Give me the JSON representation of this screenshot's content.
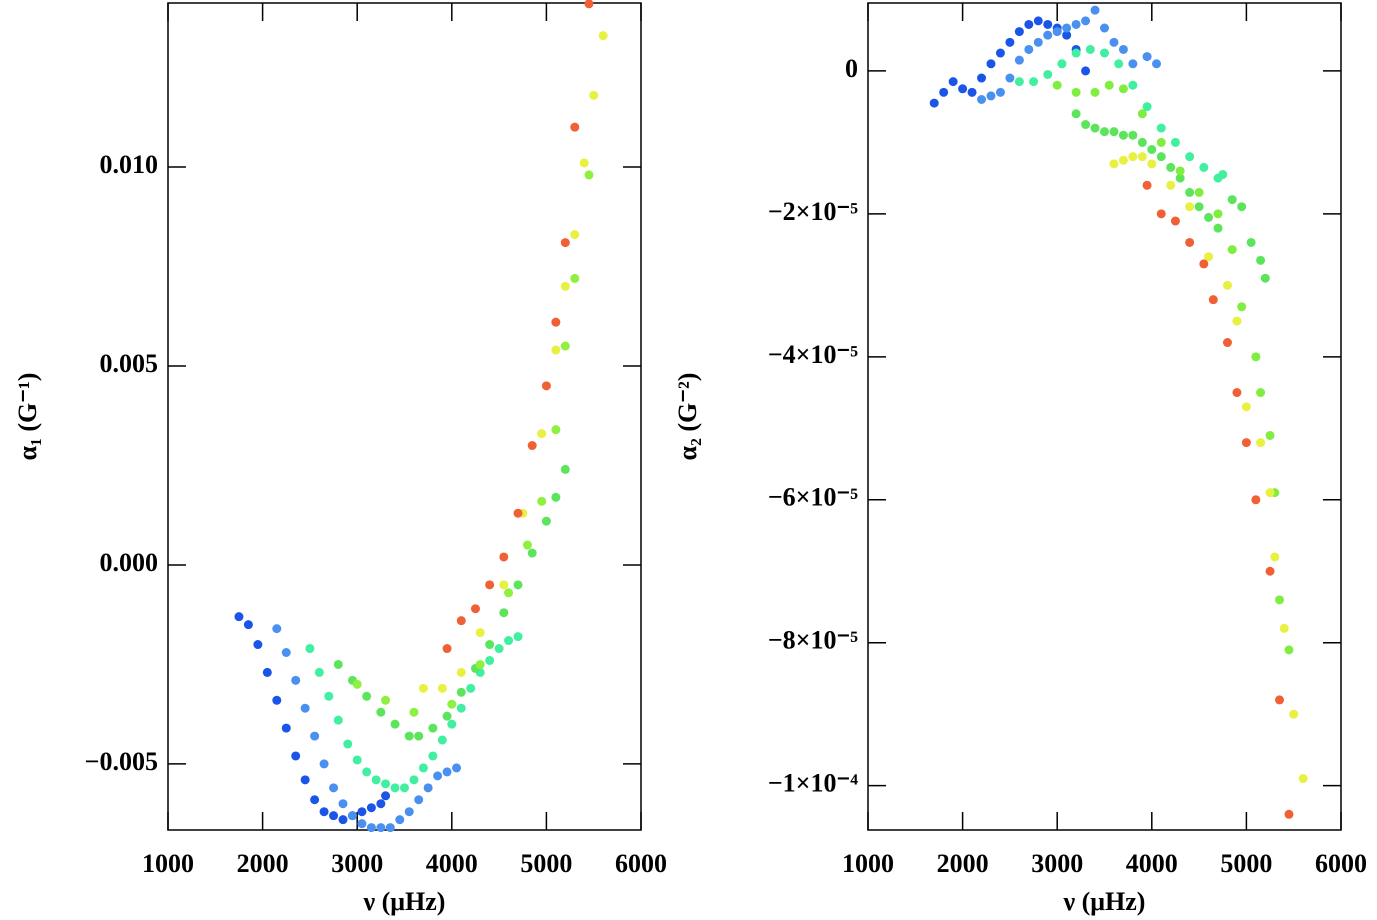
{
  "chart_data": [
    {
      "type": "scatter",
      "xlabel": "ν (μHz)",
      "ylabel": "α₁ (G⁻¹)",
      "xlim": [
        1000,
        6000
      ],
      "xticks": [
        1000,
        2000,
        3000,
        4000,
        5000,
        6000
      ],
      "ylim": [
        -0.00666,
        0.01412
      ],
      "yticks": [
        {
          "value": 0.01,
          "label": "0.010"
        },
        {
          "value": 0.005,
          "label": "0.005"
        },
        {
          "value": 0,
          "label": "0.000"
        },
        {
          "value": -0.005,
          "label": "−0.005"
        }
      ],
      "series": [
        {
          "color": "#1b55e8",
          "x": [
            1750,
            1850,
            1950,
            2050,
            2150,
            2250,
            2350,
            2450,
            2550,
            2650,
            2750,
            2850,
            2950,
            3050,
            3150,
            3250,
            3300
          ],
          "values": [
            -0.0013,
            -0.0015,
            -0.002,
            -0.0027,
            -0.0034,
            -0.0041,
            -0.0048,
            -0.0054,
            -0.0059,
            -0.0062,
            -0.0063,
            -0.0064,
            -0.0063,
            -0.0062,
            -0.0061,
            -0.006,
            -0.0058
          ]
        },
        {
          "color": "#4a90f0",
          "x": [
            2150,
            2250,
            2350,
            2450,
            2550,
            2650,
            2750,
            2850,
            2950,
            3050,
            3150,
            3250,
            3350,
            3450,
            3550,
            3650,
            3750,
            3850,
            3950,
            4050
          ],
          "values": [
            -0.0016,
            -0.0022,
            -0.0029,
            -0.0036,
            -0.0043,
            -0.005,
            -0.0056,
            -0.006,
            -0.0063,
            -0.0065,
            -0.0066,
            -0.0066,
            -0.0066,
            -0.0064,
            -0.0062,
            -0.0059,
            -0.0056,
            -0.0053,
            -0.0052,
            -0.0051
          ]
        },
        {
          "color": "#40f0a0",
          "x": [
            2500,
            2600,
            2700,
            2800,
            2900,
            3000,
            3100,
            3200,
            3300,
            3400,
            3500,
            3600,
            3700,
            3800,
            3900,
            4000,
            4100,
            4200,
            4300,
            4400,
            4500,
            4600,
            4700
          ],
          "values": [
            -0.0021,
            -0.0027,
            -0.0033,
            -0.0039,
            -0.0045,
            -0.0049,
            -0.0052,
            -0.0054,
            -0.0055,
            -0.0056,
            -0.0056,
            -0.0054,
            -0.0051,
            -0.0048,
            -0.0044,
            -0.004,
            -0.0036,
            -0.0031,
            -0.0027,
            -0.0024,
            -0.0021,
            -0.0019,
            -0.0018
          ]
        },
        {
          "color": "#5ce55c",
          "x": [
            2800,
            2950,
            3100,
            3250,
            3400,
            3550,
            3650,
            3800,
            3950,
            4100,
            4250,
            4400,
            4550,
            4700,
            4850,
            5000,
            5100,
            5200
          ],
          "values": [
            -0.0025,
            -0.0029,
            -0.0033,
            -0.0037,
            -0.004,
            -0.0043,
            -0.0043,
            -0.0041,
            -0.0038,
            -0.0032,
            -0.0026,
            -0.002,
            -0.0012,
            -0.0005,
            0.0003,
            0.0011,
            0.0017,
            0.0024
          ]
        },
        {
          "color": "#90f040",
          "x": [
            3000,
            3300,
            3600,
            4000,
            4300,
            4600,
            4800,
            4950,
            5100,
            5200,
            5300,
            5450
          ],
          "values": [
            -0.003,
            -0.0034,
            -0.0037,
            -0.0035,
            -0.0025,
            -0.0007,
            0.0005,
            0.0016,
            0.0034,
            0.0055,
            0.0072,
            0.0098
          ]
        },
        {
          "color": "#e8f040",
          "x": [
            3700,
            3900,
            4100,
            4300,
            4550,
            4750,
            4950,
            5100,
            5200,
            5300,
            5400,
            5500,
            5600
          ],
          "values": [
            -0.0031,
            -0.0031,
            -0.0027,
            -0.0017,
            -0.0005,
            0.0013,
            0.0033,
            0.0054,
            0.007,
            0.0083,
            0.0101,
            0.0118,
            0.0133
          ]
        },
        {
          "color": "#f06035",
          "x": [
            3950,
            4100,
            4250,
            4400,
            4550,
            4700,
            4850,
            5000,
            5100,
            5200,
            5300,
            5450
          ],
          "values": [
            -0.0021,
            -0.0014,
            -0.0011,
            -0.0005,
            0.0002,
            0.0013,
            0.003,
            0.0045,
            0.0061,
            0.0081,
            0.011,
            0.0141
          ]
        }
      ]
    },
    {
      "type": "scatter",
      "xlabel": "ν (μHz)",
      "ylabel": "α₂ (G⁻²)",
      "xlim": [
        1000,
        6000
      ],
      "xticks": [
        1000,
        2000,
        3000,
        4000,
        5000,
        6000
      ],
      "ylim": [
        -0.0001062,
        9.5e-06
      ],
      "yticks": [
        0,
        {
          "value": -2e-05,
          "label": "−2×10⁻⁵"
        },
        {
          "value": -4e-05,
          "label": "−4×10⁻⁵"
        },
        {
          "value": -6e-05,
          "label": "−6×10⁻⁵"
        },
        {
          "value": -8e-05,
          "label": "−8×10⁻⁵"
        },
        {
          "value": -0.0001,
          "label": "−1×10⁻⁴"
        }
      ],
      "series": [
        {
          "color": "#1b55e8",
          "x": [
            1700,
            1800,
            1900,
            2000,
            2100,
            2200,
            2300,
            2400,
            2500,
            2600,
            2700,
            2800,
            2900,
            3000,
            3100,
            3200,
            3300
          ],
          "values": [
            -4.5e-06,
            -3e-06,
            -1.5e-06,
            -2.5e-06,
            -3e-06,
            -1e-06,
            1e-06,
            2.5e-06,
            4e-06,
            5.5e-06,
            6.5e-06,
            7e-06,
            6.5e-06,
            6e-06,
            5e-06,
            3e-06,
            0.0
          ]
        },
        {
          "color": "#4a90f0",
          "x": [
            2200,
            2300,
            2400,
            2500,
            2600,
            2700,
            2800,
            2900,
            3000,
            3100,
            3200,
            3300,
            3400,
            3500,
            3600,
            3700,
            3800,
            3950,
            4050
          ],
          "values": [
            -4e-06,
            -3.5e-06,
            -3e-06,
            -1e-06,
            1.5e-06,
            3e-06,
            4e-06,
            5e-06,
            5.5e-06,
            6e-06,
            6.5e-06,
            7e-06,
            8.5e-06,
            6e-06,
            4e-06,
            3e-06,
            1e-06,
            2e-06,
            1e-06
          ]
        },
        {
          "color": "#40f0a0",
          "x": [
            2600,
            2750,
            2900,
            3050,
            3200,
            3350,
            3500,
            3650,
            3800,
            3950,
            4100,
            4250,
            4400,
            4550,
            4700,
            4750
          ],
          "values": [
            -1.5e-06,
            -1.5e-06,
            -5e-07,
            1e-06,
            2.5e-06,
            3e-06,
            2.5e-06,
            1e-06,
            -2e-06,
            -5e-06,
            -8e-06,
            -1e-05,
            -1.2e-05,
            -1.35e-05,
            -1.5e-05,
            -1.45e-05
          ]
        },
        {
          "color": "#5ce55c",
          "x": [
            3200,
            3300,
            3400,
            3500,
            3600,
            3700,
            3800,
            3900,
            4000,
            4100,
            4200,
            4300,
            4400,
            4500,
            4600,
            4700,
            4850,
            4950,
            5050,
            5150,
            5200
          ],
          "values": [
            -6e-06,
            -7.5e-06,
            -8e-06,
            -8.5e-06,
            -8.5e-06,
            -9e-06,
            -9e-06,
            -1e-05,
            -1.1e-05,
            -1.2e-05,
            -1.35e-05,
            -1.5e-05,
            -1.7e-05,
            -1.9e-05,
            -2.05e-05,
            -2.2e-05,
            -1.8e-05,
            -1.9e-05,
            -2.4e-05,
            -2.65e-05,
            -2.9e-05
          ]
        },
        {
          "color": "#80ee40",
          "x": [
            3000,
            3200,
            3400,
            3550,
            3700,
            3900,
            4100,
            4300,
            4500,
            4700,
            4850,
            4950,
            5100,
            5150,
            5250,
            5300,
            5350,
            5450
          ],
          "values": [
            -2e-06,
            -3e-06,
            -3e-06,
            -2e-06,
            -2.5e-06,
            -6e-06,
            -1e-05,
            -1.4e-05,
            -1.7e-05,
            -2e-05,
            -2.5e-05,
            -3.3e-05,
            -4e-05,
            -4.5e-05,
            -5.1e-05,
            -5.9e-05,
            -7.4e-05,
            -8.1e-05
          ]
        },
        {
          "color": "#e8f040",
          "x": [
            3600,
            3700,
            3800,
            3900,
            4000,
            4200,
            4400,
            4600,
            4800,
            4900,
            5000,
            5150,
            5250,
            5300,
            5400,
            5500,
            5600
          ],
          "values": [
            -1.3e-05,
            -1.25e-05,
            -1.2e-05,
            -1.2e-05,
            -1.3e-05,
            -1.6e-05,
            -1.9e-05,
            -2.6e-05,
            -3e-05,
            -3.5e-05,
            -4.7e-05,
            -5.2e-05,
            -5.9e-05,
            -6.8e-05,
            -7.8e-05,
            -9e-05,
            -9.9e-05
          ]
        },
        {
          "color": "#f06035",
          "x": [
            3950,
            4100,
            4250,
            4400,
            4550,
            4650,
            4800,
            4900,
            5000,
            5100,
            5250,
            5350,
            5450
          ],
          "values": [
            -1.6e-05,
            -2e-05,
            -2.1e-05,
            -2.4e-05,
            -2.7e-05,
            -3.2e-05,
            -3.8e-05,
            -4.5e-05,
            -5.2e-05,
            -6e-05,
            -7e-05,
            -8.8e-05,
            -0.000104
          ]
        }
      ]
    }
  ]
}
